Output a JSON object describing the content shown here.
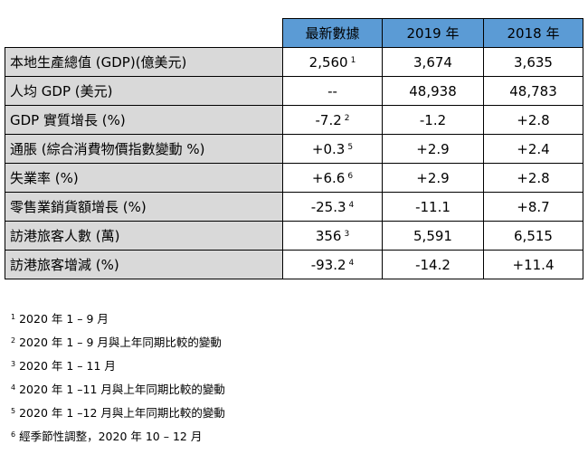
{
  "table": {
    "headers": [
      "最新數據",
      "2019 年",
      "2018 年"
    ],
    "rows": [
      {
        "label": "本地生產總值 (GDP)(億美元)",
        "latest": "2,560",
        "latest_note": "1",
        "y2019": "3,674",
        "y2018": "3,635"
      },
      {
        "label": "人均 GDP (美元)",
        "latest": "--",
        "latest_note": "",
        "y2019": "48,938",
        "y2018": "48,783"
      },
      {
        "label": "GDP 實質增長 (%)",
        "latest": "-7.2",
        "latest_note": "2",
        "y2019": "-1.2",
        "y2018": "+2.8"
      },
      {
        "label": "通脹 (綜合消費物價指數變動 %)",
        "latest": "+0.3",
        "latest_note": "5",
        "y2019": "+2.9",
        "y2018": "+2.4"
      },
      {
        "label": "失業率 (%)",
        "latest": "+6.6",
        "latest_note": "6",
        "y2019": "+2.9",
        "y2018": "+2.8"
      },
      {
        "label": "零售業銷貨額增長 (%)",
        "latest": "-25.3",
        "latest_note": "4",
        "y2019": "-11.1",
        "y2018": "+8.7"
      },
      {
        "label": "訪港旅客人數 (萬)",
        "latest": "356",
        "latest_note": "3",
        "y2019": "5,591",
        "y2018": "6,515"
      },
      {
        "label": "訪港旅客增減 (%)",
        "latest": "-93.2",
        "latest_note": "4",
        "y2019": "-14.2",
        "y2018": "+11.4"
      }
    ]
  },
  "notes": [
    {
      "mark": "1",
      "text": "2020 年 1 – 9 月"
    },
    {
      "mark": "2",
      "text": "2020 年 1 – 9 月與上年同期比較的變動"
    },
    {
      "mark": "3",
      "text": "2020 年 1 – 11 月"
    },
    {
      "mark": "4",
      "text": "2020 年 1 –11 月與上年同期比較的變動"
    },
    {
      "mark": "5",
      "text": "2020 年 1 –12 月與上年同期比較的變動"
    },
    {
      "mark": "6",
      "text": "經季節性調整，2020 年 10 – 12 月"
    }
  ]
}
